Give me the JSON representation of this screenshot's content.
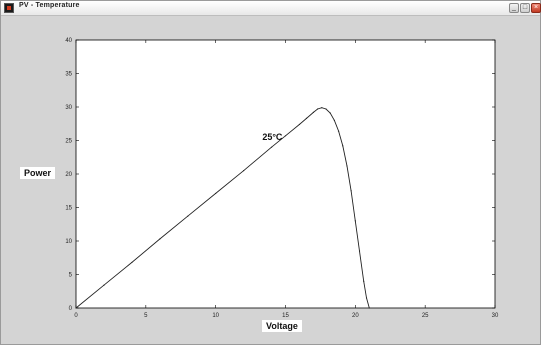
{
  "window": {
    "title": "PV - Temperature"
  },
  "chart_data": {
    "type": "line",
    "title": "",
    "xlabel": "Voltage",
    "ylabel": "Power",
    "xlim": [
      0,
      30
    ],
    "ylim": [
      0,
      40
    ],
    "xticks": [
      "0",
      "5",
      "10",
      "15",
      "20",
      "25",
      "30"
    ],
    "yticks": [
      "0",
      "5",
      "10",
      "15",
      "20",
      "25",
      "30",
      "35",
      "40"
    ],
    "grid": false,
    "series": [
      {
        "x": [
          0,
          2,
          4,
          6,
          8,
          10,
          12,
          14,
          15,
          16,
          16.5,
          17,
          17.3,
          17.6,
          17.9,
          18.2,
          18.5,
          18.8,
          19.1,
          19.4,
          19.7,
          20,
          20.3,
          20.6,
          20.8,
          21.0
        ],
        "y": [
          0,
          3.4,
          6.8,
          10.3,
          13.7,
          17.1,
          20.5,
          24.0,
          25.7,
          27.4,
          28.3,
          29.2,
          29.7,
          29.9,
          29.7,
          29.1,
          28.0,
          26.4,
          24.2,
          21.2,
          17.5,
          13.0,
          8.5,
          4.0,
          1.5,
          0
        ]
      }
    ],
    "annotations": [
      {
        "text": "25°C",
        "x": 14.2,
        "y": 25.5
      }
    ]
  }
}
